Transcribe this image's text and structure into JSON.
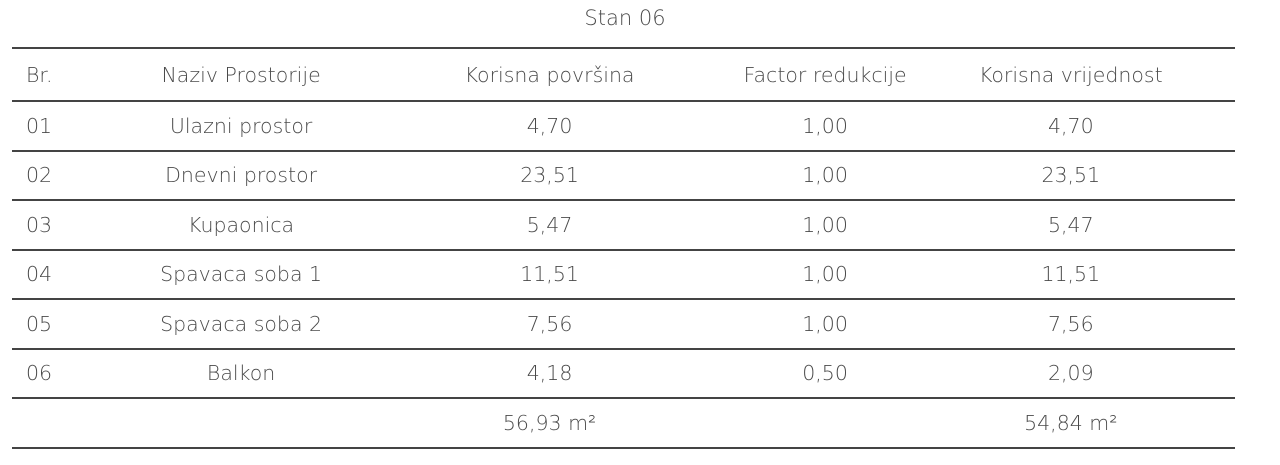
{
  "title": "Stan 06",
  "headers": [
    "Br.",
    "Naziv Prostorije",
    "Korisna površina",
    "Factor redukcije",
    "Korisna vrijednost"
  ],
  "rows": [
    [
      "01",
      "Ulazni prostor",
      "4,70",
      "1,00",
      "4,70"
    ],
    [
      "02",
      "Dnevni prostor",
      "23,51",
      "1,00",
      "23,51"
    ],
    [
      "03",
      "Kupaonica",
      "5,47",
      "1,00",
      "5,47"
    ],
    [
      "04",
      "Spavaca soba 1",
      "11,51",
      "1,00",
      "11,51"
    ],
    [
      "05",
      "Spavaca soba 2",
      "7,56",
      "1,00",
      "7,56"
    ],
    [
      "06",
      "Balkon",
      "4,18",
      "0,50",
      "2,09"
    ]
  ],
  "totals": {
    "korisna_povrsina": "56,93 m²",
    "korisna_vrijednost": "54,84 m²"
  }
}
